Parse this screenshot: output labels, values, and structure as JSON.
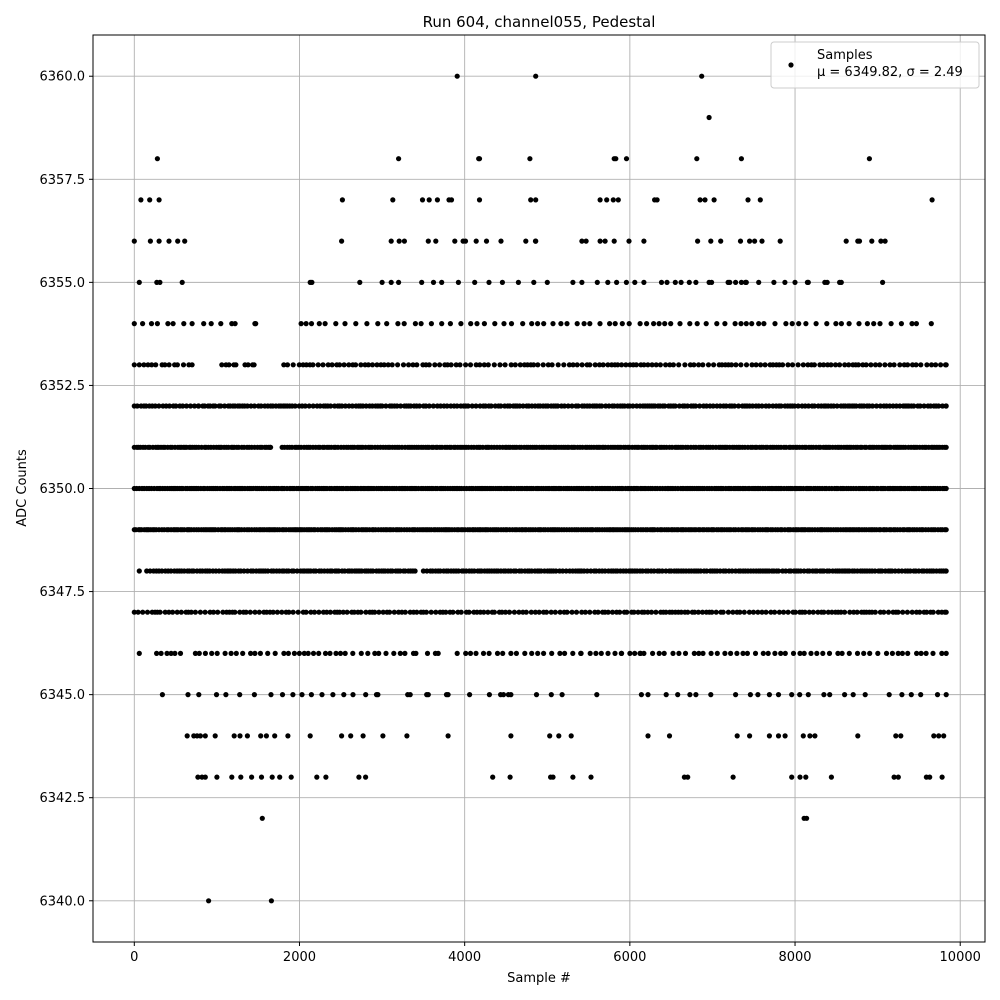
{
  "chart_data": {
    "type": "scatter",
    "title": "Run 604, channel055, Pedestal",
    "xlabel": "Sample #",
    "ylabel": "ADC Counts",
    "xlim": [
      -500,
      10300
    ],
    "ylim": [
      6339,
      6361
    ],
    "grid": true,
    "x_ticks": [
      0,
      2000,
      4000,
      6000,
      8000,
      10000
    ],
    "x_tick_labels": [
      "0",
      "2000",
      "4000",
      "6000",
      "8000",
      "10000"
    ],
    "y_ticks": [
      6340.0,
      6342.5,
      6345.0,
      6347.5,
      6350.0,
      6352.5,
      6355.0,
      6357.5,
      6360.0
    ],
    "y_tick_labels": [
      "6340.0",
      "6342.5",
      "6345.0",
      "6347.5",
      "6350.0",
      "6352.5",
      "6355.0",
      "6357.5",
      "6360.0"
    ],
    "legend": {
      "placement": "top-right",
      "entries": [
        {
          "label": "Samples",
          "stats_text": "μ = 6349.82, σ = 2.49"
        }
      ]
    },
    "series": [
      {
        "name": "Samples",
        "color": "#000000",
        "x_range": [
          0,
          9830
        ],
        "level_coverage": [
          {
            "y": 6340,
            "x": [
              900,
              1660
            ]
          },
          {
            "y": 6342,
            "x": [
              1550,
              8110,
              8140
            ]
          },
          {
            "y": 6343,
            "x": [
              770,
              820,
              860,
              1000,
              1180,
              1290,
              1420,
              1540,
              1670,
              1760,
              1900,
              2210,
              2320,
              2720,
              2800,
              4340,
              4550,
              5040,
              5070,
              5310,
              5530,
              6660,
              6700,
              7250,
              7960,
              8060,
              8130,
              8440,
              9200,
              9250,
              9590,
              9630,
              9780
            ]
          },
          {
            "y": 6344,
            "x": [
              640,
              720,
              760,
              800,
              860,
              980,
              1210,
              1280,
              1370,
              1530,
              1600,
              1700,
              1860,
              2130,
              2510,
              2620,
              2770,
              3010,
              3300,
              3800,
              4560,
              5030,
              5140,
              5290,
              6220,
              6480,
              7300,
              7450,
              7690,
              7800,
              7880,
              8100,
              8180,
              8240,
              8760,
              9220,
              9280,
              9680,
              9740,
              9800
            ]
          }
        ],
        "band_coverage": [
          {
            "y": 6345,
            "segments": [
              [
                340,
                340
              ],
              [
                650,
                1920
              ],
              [
                2030,
                2950
              ],
              [
                3310,
                3340
              ],
              [
                3540,
                3560
              ],
              [
                3780,
                3800
              ],
              [
                4060,
                4060
              ],
              [
                4300,
                4470
              ],
              [
                4530,
                4560
              ],
              [
                4870,
                5180
              ],
              [
                5600,
                5600
              ],
              [
                6140,
                6220
              ],
              [
                6440,
                6800
              ],
              [
                6980,
                6980
              ],
              [
                7280,
                7280
              ],
              [
                7460,
                7550
              ],
              [
                7690,
                7800
              ],
              [
                7960,
                8160
              ],
              [
                8350,
                8420
              ],
              [
                8600,
                8850
              ],
              [
                9140,
                9830
              ]
            ]
          },
          {
            "y": 6346,
            "segments": [
              [
                60,
                60
              ],
              [
                270,
                560
              ],
              [
                740,
                3410
              ],
              [
                3550,
                3680
              ],
              [
                3910,
                5410
              ],
              [
                5520,
                5900
              ],
              [
                6000,
                6130
              ],
              [
                6170,
                9830
              ]
            ]
          },
          {
            "y": 6347,
            "segments": [
              [
                0,
                3200
              ],
              [
                3240,
                4360
              ],
              [
                4420,
                9830
              ]
            ]
          },
          {
            "y": 6348,
            "segments": [
              [
                60,
                60
              ],
              [
                150,
                3400
              ],
              [
                3500,
                5800
              ],
              [
                5830,
                7800
              ],
              [
                7850,
                9830
              ]
            ]
          },
          {
            "y": 6349,
            "segments": [
              [
                0,
                9830
              ]
            ]
          },
          {
            "y": 6350,
            "segments": [
              [
                0,
                9830
              ]
            ]
          },
          {
            "y": 6351,
            "segments": [
              [
                0,
                1650
              ],
              [
                1790,
                9830
              ]
            ]
          },
          {
            "y": 6352,
            "segments": [
              [
                0,
                780
              ],
              [
                830,
                9830
              ]
            ]
          },
          {
            "y": 6353,
            "segments": [
              [
                0,
                700
              ],
              [
                1060,
                1230
              ],
              [
                1340,
                1450
              ],
              [
                1810,
                9830
              ]
            ]
          },
          {
            "y": 6354,
            "segments": [
              [
                0,
                700
              ],
              [
                840,
                1220
              ],
              [
                1460,
                1470
              ],
              [
                2020,
                2310
              ],
              [
                2440,
                9470
              ],
              [
                9650,
                9650
              ]
            ]
          },
          {
            "y": 6355,
            "segments": [
              [
                60,
                310
              ],
              [
                580,
                580
              ],
              [
                2130,
                2150
              ],
              [
                2730,
                2730
              ],
              [
                3000,
                3000
              ],
              [
                3110,
                3200
              ],
              [
                3480,
                5000
              ],
              [
                5310,
                5310
              ],
              [
                5420,
                6060
              ],
              [
                6170,
                6450
              ],
              [
                6550,
                6620
              ],
              [
                6720,
                6800
              ],
              [
                6960,
                6990
              ],
              [
                7190,
                7210
              ],
              [
                7280,
                7350
              ],
              [
                7400,
                7410
              ],
              [
                7560,
                8000
              ],
              [
                8150,
                8160
              ],
              [
                8360,
                8390
              ],
              [
                8540,
                8560
              ],
              [
                9060,
                9060
              ]
            ]
          },
          {
            "y": 6356,
            "segments": [
              [
                0,
                300
              ],
              [
                420,
                610
              ],
              [
                2510,
                2510
              ],
              [
                3110,
                3270
              ],
              [
                3560,
                3650
              ],
              [
                3880,
                4010
              ],
              [
                4140,
                4440
              ],
              [
                4740,
                4860
              ],
              [
                5420,
                5470
              ],
              [
                5640,
                5700
              ],
              [
                5810,
                5990
              ],
              [
                6170,
                6170
              ],
              [
                6820,
                6820
              ],
              [
                6980,
                7100
              ],
              [
                7340,
                7450
              ],
              [
                7510,
                7600
              ],
              [
                7820,
                7820
              ],
              [
                8620,
                8620
              ],
              [
                8760,
                8780
              ],
              [
                8930,
                8930
              ],
              [
                9040,
                9090
              ]
            ]
          },
          {
            "y": 6357,
            "segments": [
              [
                80,
                300
              ],
              [
                2520,
                2520
              ],
              [
                3130,
                3130
              ],
              [
                3490,
                3490
              ],
              [
                3570,
                3570
              ],
              [
                3670,
                3670
              ],
              [
                3810,
                3840
              ],
              [
                4180,
                4180
              ],
              [
                4800,
                4860
              ],
              [
                5640,
                5720
              ],
              [
                5800,
                5860
              ],
              [
                6300,
                6330
              ],
              [
                6850,
                6910
              ],
              [
                7020,
                7020
              ],
              [
                7430,
                7430
              ],
              [
                7580,
                7580
              ],
              [
                9660,
                9660
              ]
            ]
          }
        ],
        "points": [
          {
            "x": 280,
            "y": 6358
          },
          {
            "x": 3200,
            "y": 6358
          },
          {
            "x": 4170,
            "y": 6358
          },
          {
            "x": 4180,
            "y": 6358
          },
          {
            "x": 4790,
            "y": 6358
          },
          {
            "x": 5810,
            "y": 6358
          },
          {
            "x": 5830,
            "y": 6358
          },
          {
            "x": 5960,
            "y": 6358
          },
          {
            "x": 6810,
            "y": 6358
          },
          {
            "x": 7350,
            "y": 6358
          },
          {
            "x": 8900,
            "y": 6358
          },
          {
            "x": 6960,
            "y": 6359
          },
          {
            "x": 3910,
            "y": 6360
          },
          {
            "x": 4860,
            "y": 6360
          },
          {
            "x": 6870,
            "y": 6360
          }
        ]
      }
    ]
  }
}
